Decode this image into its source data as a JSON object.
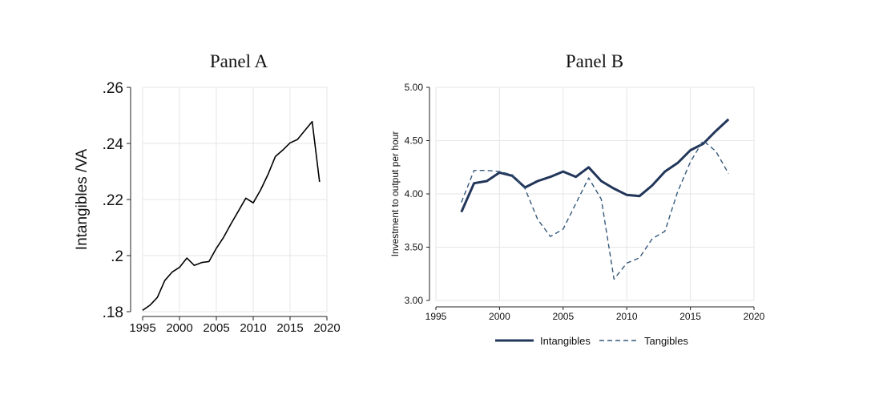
{
  "chart_data": [
    {
      "type": "line",
      "title": "Panel A",
      "xlabel": "",
      "ylabel": "Intangibles /VA",
      "xlim": [
        1995,
        2020
      ],
      "ylim": [
        0.18,
        0.26
      ],
      "x_ticks": [
        1995,
        2000,
        2005,
        2010,
        2015,
        2020
      ],
      "x_tick_labels": [
        "1995",
        "2000",
        "2005",
        "2010",
        "2015",
        "2020"
      ],
      "y_ticks": [
        0.18,
        0.2,
        0.22,
        0.24,
        0.26
      ],
      "y_tick_labels": [
        ".18",
        ".2",
        ".22",
        ".24",
        ".26"
      ],
      "grid": true,
      "series": [
        {
          "color": "#000000",
          "style": "solid",
          "x": [
            1995,
            1996,
            1997,
            1998,
            1999,
            2000,
            2001,
            2002,
            2003,
            2004,
            2005,
            2006,
            2007,
            2008,
            2009,
            2010,
            2011,
            2012,
            2013,
            2014,
            2015,
            2016,
            2017,
            2018,
            2019
          ],
          "y": [
            0.1805,
            0.1823,
            0.1851,
            0.1911,
            0.1941,
            0.1958,
            0.1991,
            0.1965,
            0.1975,
            0.1979,
            0.2026,
            0.2066,
            0.2114,
            0.2159,
            0.2205,
            0.2188,
            0.2234,
            0.2289,
            0.2353,
            0.2376,
            0.2402,
            0.2414,
            0.2446,
            0.2478,
            0.2263
          ]
        }
      ]
    },
    {
      "type": "line",
      "title": "Panel B",
      "xlabel": "",
      "ylabel": "Investment to output per hour",
      "xlim": [
        1995,
        2020
      ],
      "ylim": [
        3.0,
        5.0
      ],
      "x_ticks": [
        1995,
        2000,
        2005,
        2010,
        2015,
        2020
      ],
      "x_tick_labels": [
        "1995",
        "2000",
        "2005",
        "2010",
        "2015",
        "2020"
      ],
      "y_ticks": [
        3.0,
        3.5,
        4.0,
        4.5,
        5.0
      ],
      "y_tick_labels": [
        "3.00",
        "3.50",
        "4.00",
        "4.50",
        "5.00"
      ],
      "grid": true,
      "legend": "bottom",
      "series": [
        {
          "name": "Intangibles",
          "color": "#22365a",
          "style": "solid",
          "x": [
            1997,
            1998,
            1999,
            2000,
            2001,
            2002,
            2003,
            2004,
            2005,
            2006,
            2007,
            2008,
            2009,
            2010,
            2011,
            2012,
            2013,
            2014,
            2015,
            2016,
            2017,
            2018
          ],
          "y": [
            3.83,
            4.1,
            4.12,
            4.2,
            4.17,
            4.06,
            4.12,
            4.16,
            4.21,
            4.16,
            4.25,
            4.12,
            4.05,
            3.99,
            3.98,
            4.08,
            4.21,
            4.29,
            4.41,
            4.47,
            4.59,
            4.7
          ]
        },
        {
          "name": "Tangibles",
          "color": "#34587a",
          "style": "dashed",
          "x": [
            1997,
            1998,
            1999,
            2000,
            2001,
            2002,
            2003,
            2004,
            2005,
            2006,
            2007,
            2008,
            2009,
            2010,
            2011,
            2012,
            2013,
            2014,
            2015,
            2016,
            2017,
            2018
          ],
          "y": [
            3.92,
            4.22,
            4.22,
            4.21,
            4.18,
            4.05,
            3.76,
            3.6,
            3.67,
            3.91,
            4.15,
            3.95,
            3.2,
            3.35,
            3.4,
            3.58,
            3.65,
            4.02,
            4.3,
            4.5,
            4.4,
            4.19
          ]
        }
      ]
    }
  ]
}
